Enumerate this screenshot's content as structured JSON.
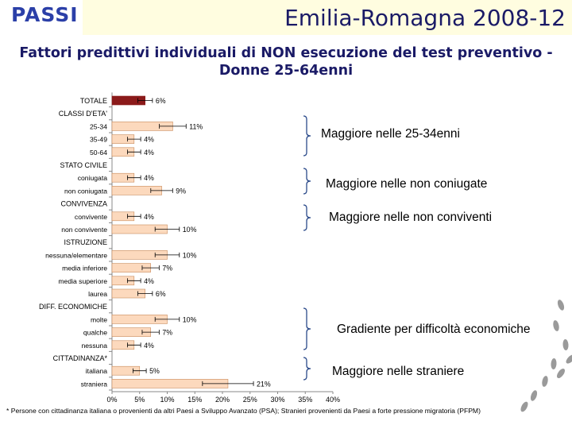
{
  "header": {
    "logo_text": "PASSI",
    "title": "Emilia-Romagna 2008-12"
  },
  "chart_data": {
    "type": "bar",
    "title": "Fattori predittivi individuali di NON esecuzione del test preventivo - Donne 25-64enni",
    "orientation": "horizontal",
    "xlim": [
      0,
      40
    ],
    "x_ticks": [
      "0%",
      "5%",
      "10%",
      "15%",
      "20%",
      "25%",
      "30%",
      "35%",
      "40%"
    ],
    "rows": [
      {
        "label": "TOTALE",
        "value": 6,
        "text": "6%",
        "kind": "total"
      },
      {
        "label": "CLASSI D'ETA'",
        "kind": "group"
      },
      {
        "label": "25-34",
        "value": 11,
        "text": "11%",
        "kind": "bar"
      },
      {
        "label": "35-49",
        "value": 4,
        "text": "4%",
        "kind": "bar"
      },
      {
        "label": "50-64",
        "value": 4,
        "text": "4%",
        "kind": "bar"
      },
      {
        "label": "STATO CIVILE",
        "kind": "group"
      },
      {
        "label": "coniugata",
        "value": 4,
        "text": "4%",
        "kind": "bar"
      },
      {
        "label": "non coniugata",
        "value": 9,
        "text": "9%",
        "kind": "bar"
      },
      {
        "label": "CONVIVENZA",
        "kind": "group"
      },
      {
        "label": "convivente",
        "value": 4,
        "text": "4%",
        "kind": "bar"
      },
      {
        "label": "non convivente",
        "value": 10,
        "text": "10%",
        "kind": "bar"
      },
      {
        "label": "ISTRUZIONE",
        "kind": "group"
      },
      {
        "label": "nessuna/elementare",
        "value": 10,
        "text": "10%",
        "kind": "bar"
      },
      {
        "label": "media inferiore",
        "value": 7,
        "text": "7%",
        "kind": "bar"
      },
      {
        "label": "media superiore",
        "value": 4,
        "text": "4%",
        "kind": "bar"
      },
      {
        "label": "laurea",
        "value": 6,
        "text": "6%",
        "kind": "bar"
      },
      {
        "label": "DIFF. ECONOMICHE",
        "kind": "group"
      },
      {
        "label": "molte",
        "value": 10,
        "text": "10%",
        "kind": "bar"
      },
      {
        "label": "qualche",
        "value": 7,
        "text": "7%",
        "kind": "bar"
      },
      {
        "label": "nessuna",
        "value": 4,
        "text": "4%",
        "kind": "bar"
      },
      {
        "label": "CITTADINANZA*",
        "kind": "group"
      },
      {
        "label": "italiana",
        "value": 5,
        "text": "5%",
        "kind": "bar"
      },
      {
        "label": "straniera",
        "value": 21,
        "text": "21%",
        "kind": "bar"
      }
    ]
  },
  "callouts": [
    "Maggiore nelle 25-34enni",
    "Maggiore nelle non coniugate",
    "Maggiore nelle non conviventi",
    "Gradiente per difficoltà economiche",
    "Maggiore nelle straniere"
  ],
  "footnote": "* Persone con cittadinanza italiana o provenienti da altri Paesi a Sviluppo Avanzato (PSA); Stranieri provenienti da Paesi a forte pressione migratoria (PFPM)",
  "colors": {
    "bar_fill": "#fcd9bd",
    "total_fill": "#8b1a1a",
    "bar_stroke": "#c98a5a",
    "title_color": "#1a1a66",
    "header_bg": "#fffde0"
  }
}
